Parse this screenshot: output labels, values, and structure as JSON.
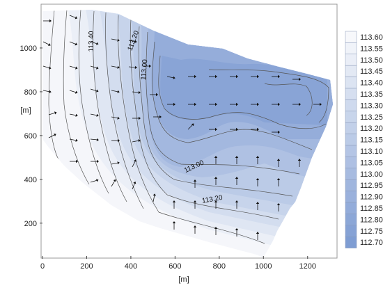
{
  "chart_data": {
    "type": "contour",
    "xlabel": "[m]",
    "ylabel": "[m]",
    "xlim": [
      0,
      1330
    ],
    "ylim": [
      50,
      1200
    ],
    "xticks": [
      0,
      200,
      400,
      600,
      800,
      1000,
      1200
    ],
    "yticks": [
      200,
      400,
      600,
      800,
      1000
    ],
    "contour_labels": [
      {
        "text": "113.40",
        "x": 230,
        "y": 1030
      },
      {
        "text": "113.20",
        "x": 420,
        "y": 1030
      },
      {
        "text": "113.00",
        "x": 470,
        "y": 900
      },
      {
        "text": "113.00",
        "x": 690,
        "y": 450
      },
      {
        "text": "113.20",
        "x": 770,
        "y": 300
      }
    ],
    "legend": {
      "position": "right",
      "levels": [
        "113.60",
        "113.55",
        "113.50",
        "113.45",
        "113.40",
        "113.35",
        "113.30",
        "113.25",
        "113.20",
        "113.15",
        "113.10",
        "113.05",
        "113.00",
        "112.95",
        "112.90",
        "112.85",
        "112.80",
        "112.75",
        "112.70"
      ],
      "color_high": "#f7f8fb",
      "color_low": "#7f9dd3"
    },
    "grid": false
  }
}
